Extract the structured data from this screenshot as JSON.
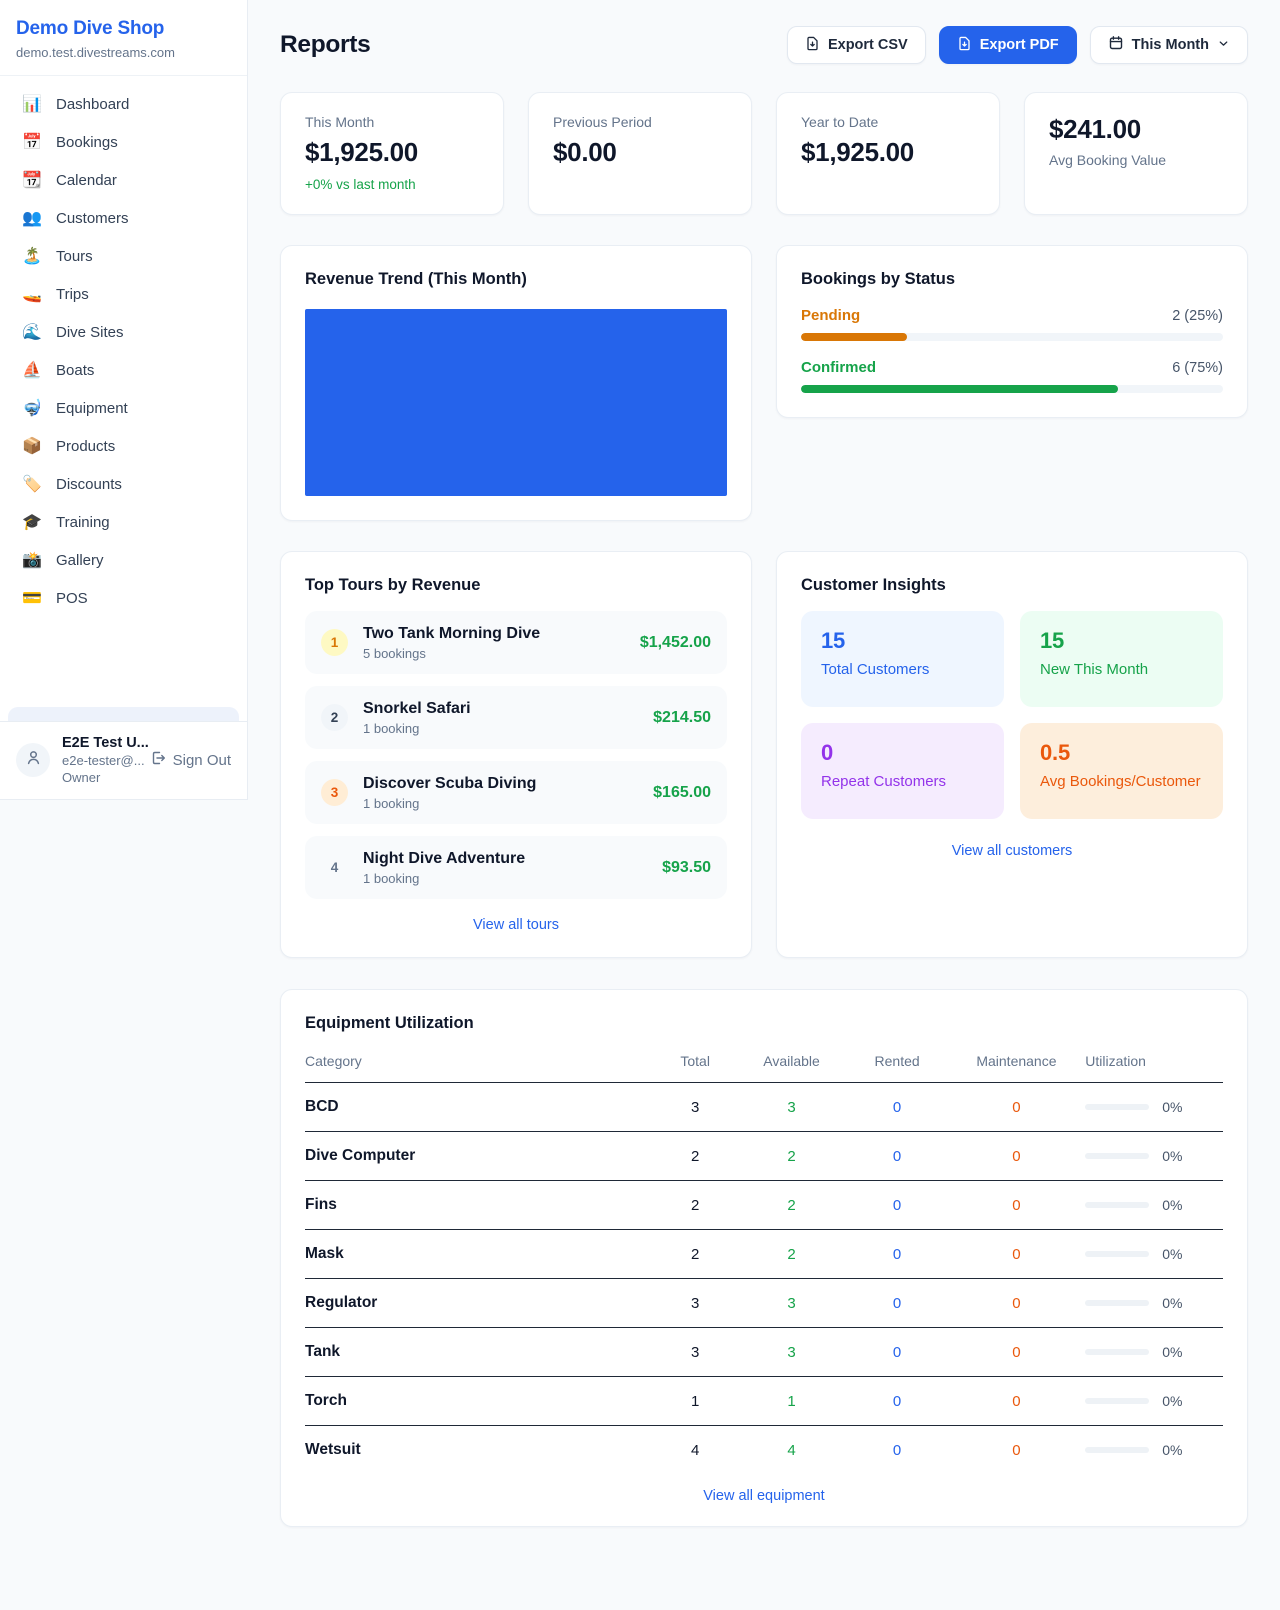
{
  "app": {
    "name": "Demo Dive Shop",
    "domain": "demo.test.divestreams.com"
  },
  "sidebar": {
    "items": [
      {
        "icon": "📊",
        "label": "Dashboard"
      },
      {
        "icon": "📅",
        "label": "Bookings"
      },
      {
        "icon": "📆",
        "label": "Calendar"
      },
      {
        "icon": "👥",
        "label": "Customers"
      },
      {
        "icon": "🏝️",
        "label": "Tours"
      },
      {
        "icon": "🚤",
        "label": "Trips"
      },
      {
        "icon": "🌊",
        "label": "Dive Sites"
      },
      {
        "icon": "⛵",
        "label": "Boats"
      },
      {
        "icon": "🤿",
        "label": "Equipment"
      },
      {
        "icon": "📦",
        "label": "Products"
      },
      {
        "icon": "🏷️",
        "label": "Discounts"
      },
      {
        "icon": "🎓",
        "label": "Training"
      },
      {
        "icon": "📸",
        "label": "Gallery"
      },
      {
        "icon": "💳",
        "label": "POS"
      }
    ],
    "user": {
      "name": "E2E Test U...",
      "email": "e2e-tester@...",
      "role": "Owner",
      "sign_out_label": "Sign Out"
    }
  },
  "header": {
    "title": "Reports",
    "export_csv_label": "Export CSV",
    "export_pdf_label": "Export PDF",
    "period_label": "This Month"
  },
  "stats": [
    {
      "label": "This Month",
      "value": "$1,925.00",
      "delta": "+0% vs last month"
    },
    {
      "label": "Previous Period",
      "value": "$0.00"
    },
    {
      "label": "Year to Date",
      "value": "$1,925.00"
    },
    {
      "label": "Avg Booking Value",
      "value": "$241.00",
      "value_first": true
    }
  ],
  "revenue_trend": {
    "title": "Revenue Trend (This Month)",
    "bar_color": "#2563eb"
  },
  "bookings_by_status": {
    "title": "Bookings by Status",
    "rows": [
      {
        "label": "Pending",
        "value": "2 (25%)",
        "percent": 25,
        "color": "#d97706"
      },
      {
        "label": "Confirmed",
        "value": "6 (75%)",
        "percent": 75,
        "color": "#16a34a"
      }
    ]
  },
  "top_tours": {
    "title": "Top Tours by Revenue",
    "items": [
      {
        "rank": "1",
        "name": "Two Tank Morning Dive",
        "bookings": "5 bookings",
        "revenue": "$1,452.00"
      },
      {
        "rank": "2",
        "name": "Snorkel Safari",
        "bookings": "1 booking",
        "revenue": "$214.50"
      },
      {
        "rank": "3",
        "name": "Discover Scuba Diving",
        "bookings": "1 booking",
        "revenue": "$165.00"
      },
      {
        "rank": "4",
        "name": "Night Dive Adventure",
        "bookings": "1 booking",
        "revenue": "$93.50"
      }
    ],
    "view_all": "View all tours"
  },
  "customer_insights": {
    "title": "Customer Insights",
    "boxes": [
      {
        "value": "15",
        "label": "Total Customers",
        "theme": "blue"
      },
      {
        "value": "15",
        "label": "New This Month",
        "theme": "green"
      },
      {
        "value": "0",
        "label": "Repeat Customers",
        "theme": "purple"
      },
      {
        "value": "0.5",
        "label": "Avg Bookings/Customer",
        "theme": "orange"
      }
    ],
    "view_all": "View all customers"
  },
  "equipment": {
    "title": "Equipment Utilization",
    "columns": [
      "Category",
      "Total",
      "Available",
      "Rented",
      "Maintenance",
      "Utilization"
    ],
    "rows": [
      {
        "category": "BCD",
        "total": "3",
        "available": "3",
        "rented": "0",
        "maintenance": "0",
        "utilization": "0%",
        "percent": 0
      },
      {
        "category": "Dive Computer",
        "total": "2",
        "available": "2",
        "rented": "0",
        "maintenance": "0",
        "utilization": "0%",
        "percent": 0
      },
      {
        "category": "Fins",
        "total": "2",
        "available": "2",
        "rented": "0",
        "maintenance": "0",
        "utilization": "0%",
        "percent": 0
      },
      {
        "category": "Mask",
        "total": "2",
        "available": "2",
        "rented": "0",
        "maintenance": "0",
        "utilization": "0%",
        "percent": 0
      },
      {
        "category": "Regulator",
        "total": "3",
        "available": "3",
        "rented": "0",
        "maintenance": "0",
        "utilization": "0%",
        "percent": 0
      },
      {
        "category": "Tank",
        "total": "3",
        "available": "3",
        "rented": "0",
        "maintenance": "0",
        "utilization": "0%",
        "percent": 0
      },
      {
        "category": "Torch",
        "total": "1",
        "available": "1",
        "rented": "0",
        "maintenance": "0",
        "utilization": "0%",
        "percent": 0
      },
      {
        "category": "Wetsuit",
        "total": "4",
        "available": "4",
        "rented": "0",
        "maintenance": "0",
        "utilization": "0%",
        "percent": 0
      }
    ],
    "view_all": "View all equipment"
  },
  "colors": {
    "accent_blue": "#2563eb",
    "green": "#16a34a",
    "amber": "#d97706",
    "orange": "#ea580c",
    "purple": "#9333ea",
    "page_bg": "#f8fafc"
  },
  "chart_data": [
    {
      "type": "bar",
      "title": "Revenue Trend (This Month)",
      "categories": [
        "This Month"
      ],
      "values": [
        1925
      ],
      "xlabel": "",
      "ylabel": "",
      "note": "rendered as a single solid full-width blue bar, no axes/ticks/labels visible",
      "color": "#2563eb"
    },
    {
      "type": "bar",
      "title": "Bookings by Status",
      "categories": [
        "Pending",
        "Confirmed"
      ],
      "values": [
        25,
        75
      ],
      "counts": [
        2,
        6
      ],
      "tick_labels": [
        "2 (25%)",
        "6 (75%)"
      ],
      "colors": [
        "#d97706",
        "#16a34a"
      ],
      "xlim": [
        0,
        100
      ]
    }
  ]
}
